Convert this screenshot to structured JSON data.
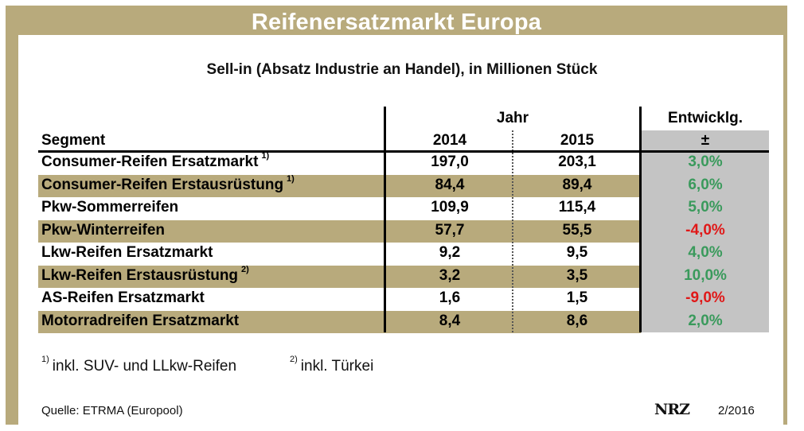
{
  "title": "Reifenersatzmarkt Europa",
  "subtitle": "Sell-in (Absatz Industrie an Handel), in Millionen Stück",
  "table": {
    "header_group": "Jahr",
    "header_dev": "Entwicklg.",
    "header_segment": "Segment",
    "header_2014": "2014",
    "header_2015": "2015",
    "header_dev_sub": "±",
    "rows": [
      {
        "segment": "Consumer-Reifen Ersatzmarkt",
        "note": "1)",
        "v2014": "197,0",
        "v2015": "203,1",
        "dev": "3,0%",
        "sign": "pos"
      },
      {
        "segment": "Consumer-Reifen Erstausrüstung",
        "note": "1)",
        "v2014": "84,4",
        "v2015": "89,4",
        "dev": "6,0%",
        "sign": "pos"
      },
      {
        "segment": "Pkw-Sommerreifen",
        "note": "",
        "v2014": "109,9",
        "v2015": "115,4",
        "dev": "5,0%",
        "sign": "pos"
      },
      {
        "segment": "Pkw-Winterreifen",
        "note": "",
        "v2014": "57,7",
        "v2015": "55,5",
        "dev": "-4,0%",
        "sign": "neg"
      },
      {
        "segment": "Lkw-Reifen Ersatzmarkt",
        "note": "",
        "v2014": "9,2",
        "v2015": "9,5",
        "dev": "4,0%",
        "sign": "pos"
      },
      {
        "segment": "Lkw-Reifen Erstausrüstung",
        "note": "2)",
        "v2014": "3,2",
        "v2015": "3,5",
        "dev": "10,0%",
        "sign": "pos"
      },
      {
        "segment": "AS-Reifen Ersatzmarkt",
        "note": "",
        "v2014": "1,6",
        "v2015": "1,5",
        "dev": "-9,0%",
        "sign": "neg"
      },
      {
        "segment": "Motorradreifen Ersatzmarkt",
        "note": "",
        "v2014": "8,4",
        "v2015": "8,6",
        "dev": "2,0%",
        "sign": "pos"
      }
    ]
  },
  "footnotes": {
    "n1_mark": "1)",
    "n1_text": "inkl. SUV- und LLkw-Reifen",
    "n2_mark": "2)",
    "n2_text": "inkl. Türkei"
  },
  "source": "Quelle: ETRMA (Europool)",
  "logo_text": "NRZ",
  "issue": "2/2016",
  "colors": {
    "frame": "#b8aa7c",
    "grey_column": "#c4c4c4",
    "positive": "#3a9a5c",
    "negative": "#e01818"
  }
}
